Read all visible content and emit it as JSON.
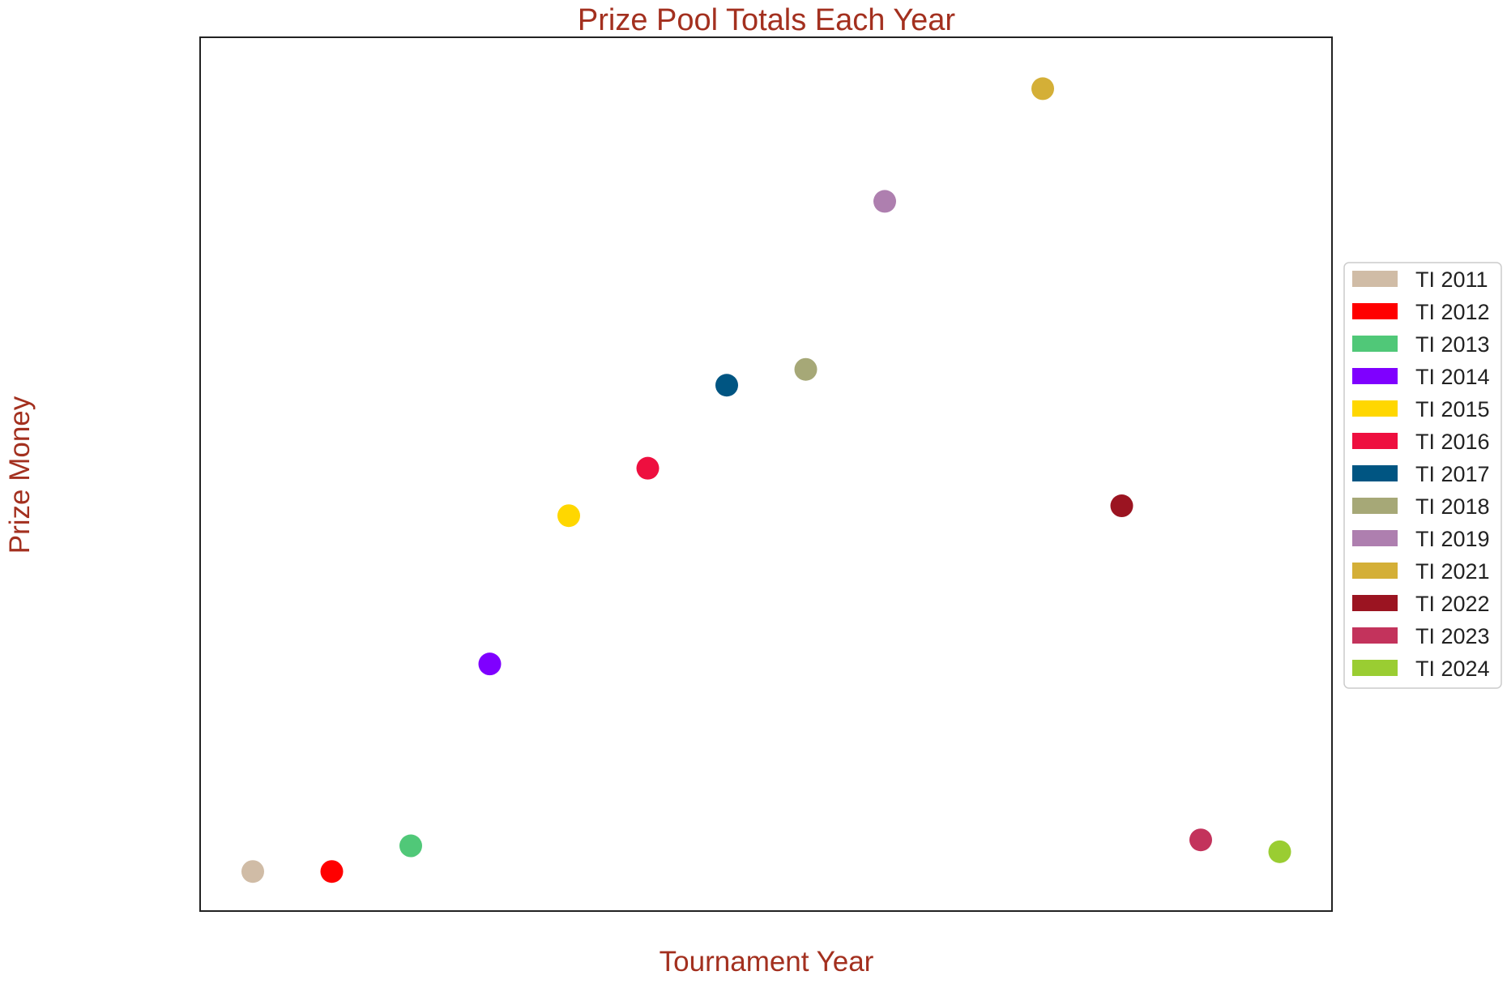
{
  "chart_data": {
    "type": "scatter",
    "title": "Prize Pool Totals Each Year",
    "xlabel": "Tournament Year",
    "ylabel": "Prize Money",
    "x_ticks_visible": false,
    "y_ticks_visible": false,
    "grid": false,
    "legend_position": "right",
    "ylim": [
      -1.6,
      42.6
    ],
    "series": [
      {
        "name": "TI 2011",
        "x": 1,
        "y": 0.4,
        "color": "#d0bca6"
      },
      {
        "name": "TI 2012",
        "x": 2,
        "y": 0.4,
        "color": "#ff0000"
      },
      {
        "name": "TI 2013",
        "x": 3,
        "y": 1.7,
        "color": "#50c878"
      },
      {
        "name": "TI 2014",
        "x": 4,
        "y": 10.9,
        "color": "#7f00ff"
      },
      {
        "name": "TI 2015",
        "x": 5,
        "y": 18.4,
        "color": "#ffd700"
      },
      {
        "name": "TI 2016",
        "x": 6,
        "y": 20.8,
        "color": "#ee0f3f"
      },
      {
        "name": "TI 2017",
        "x": 7,
        "y": 25.0,
        "color": "#005582"
      },
      {
        "name": "TI 2018",
        "x": 8,
        "y": 25.8,
        "color": "#a6a877"
      },
      {
        "name": "TI 2019",
        "x": 9,
        "y": 34.3,
        "color": "#ae7faf"
      },
      {
        "name": "TI 2021",
        "x": 11,
        "y": 40.0,
        "color": "#d4af37"
      },
      {
        "name": "TI 2022",
        "x": 12,
        "y": 18.9,
        "color": "#9b1421"
      },
      {
        "name": "TI 2023",
        "x": 13,
        "y": 2.0,
        "color": "#c3335c"
      },
      {
        "name": "TI 2024",
        "x": 14,
        "y": 1.4,
        "color": "#9acd32"
      }
    ]
  }
}
